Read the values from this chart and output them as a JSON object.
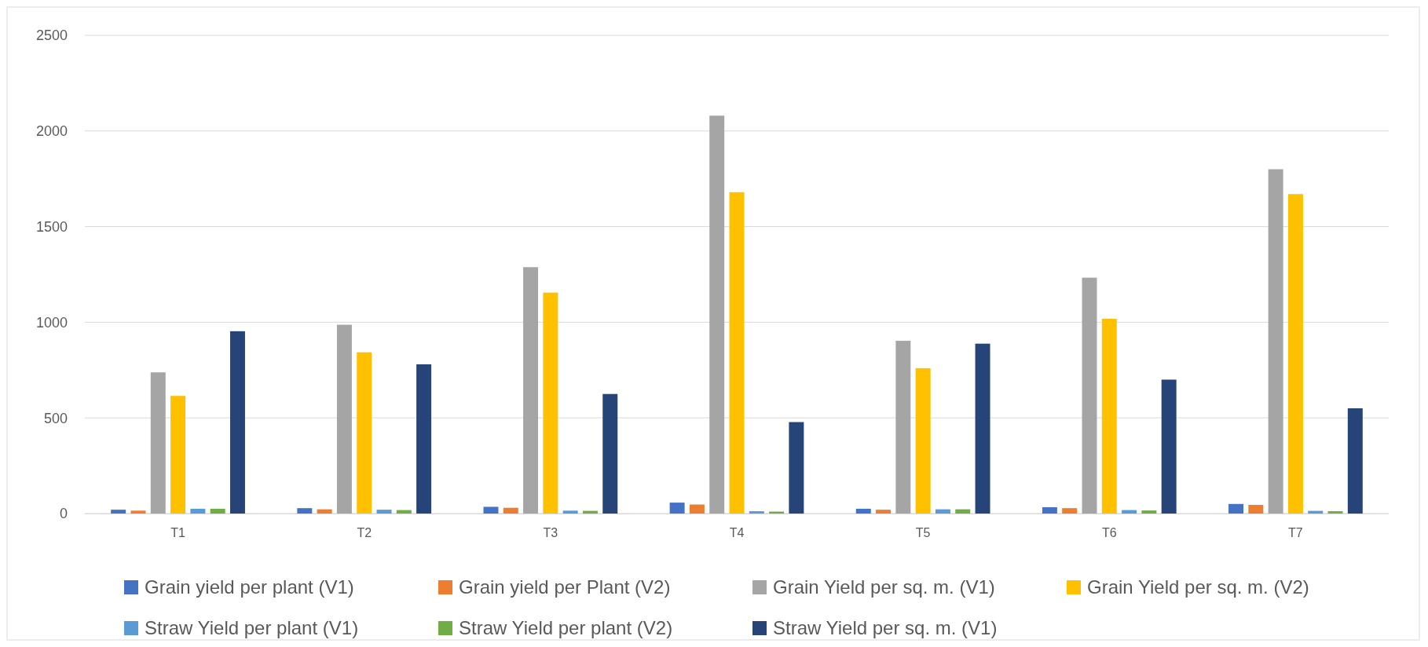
{
  "chart_data": {
    "type": "bar",
    "categories": [
      "T1",
      "T2",
      "T3",
      "T4",
      "T5",
      "T6",
      "T7"
    ],
    "series": [
      {
        "name": "Grain yield per plant (V1)",
        "color": "#4472c4",
        "values": [
          20,
          28,
          35,
          57,
          25,
          33,
          50
        ]
      },
      {
        "name": "Grain yield per Plant (V2)",
        "color": "#ed7d31",
        "values": [
          15,
          22,
          30,
          47,
          20,
          28,
          45
        ]
      },
      {
        "name": "Grain Yield per sq. m. (V1)",
        "color": "#a5a5a5",
        "values": [
          738,
          987,
          1288,
          2080,
          903,
          1233,
          1800
        ]
      },
      {
        "name": "Grain Yield per sq. m. (V2)",
        "color": "#ffc000",
        "values": [
          615,
          843,
          1155,
          1680,
          760,
          1018,
          1670
        ]
      },
      {
        "name": "Straw Yield per plant (V1)",
        "color": "#5b9bd5",
        "values": [
          25,
          20,
          15,
          12,
          22,
          18,
          14
        ]
      },
      {
        "name": "Straw Yield per plant (V2)",
        "color": "#70ad47",
        "values": [
          25,
          18,
          14,
          10,
          22,
          16,
          12
        ]
      },
      {
        "name": "Straw Yield per sq. m. (V1)",
        "color": "#264478",
        "values": [
          953,
          780,
          625,
          478,
          888,
          700,
          550
        ]
      }
    ],
    "ylim": [
      0,
      2500
    ],
    "yticks": [
      0,
      500,
      1000,
      1500,
      2000,
      2500
    ],
    "grid": "y",
    "legend": "bottom"
  }
}
